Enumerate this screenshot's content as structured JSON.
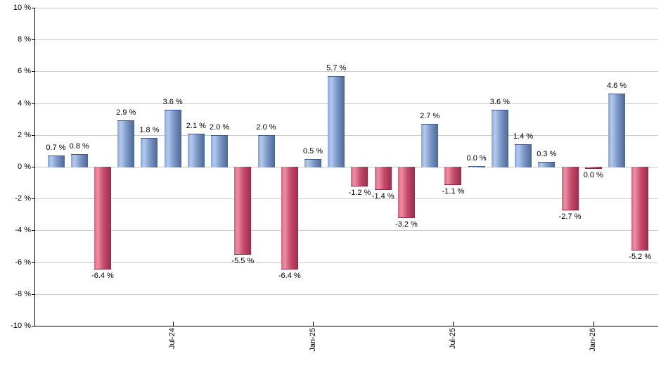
{
  "chart_data": {
    "type": "bar",
    "title": "",
    "xlabel": "",
    "ylabel": "",
    "unit": "%",
    "ylim": [
      -10,
      10
    ],
    "y_tick_step": 2,
    "y_tick_labels": [
      "10 %",
      "8 %",
      "6 %",
      "4 %",
      "2 %",
      "0 %",
      "-2 %",
      "-4 %",
      "-6 %",
      "-8 %",
      "-10 %"
    ],
    "x_tick_labels": [
      {
        "bar_index": 5,
        "label": "Jul-24"
      },
      {
        "bar_index": 11,
        "label": "Jan-25"
      },
      {
        "bar_index": 17,
        "label": "Jul-25"
      },
      {
        "bar_index": 23,
        "label": "Jan-26"
      }
    ],
    "grid": "horizontal",
    "legend": "none",
    "bars": [
      {
        "value": 0.7,
        "label": "0.7 %",
        "color": "blue"
      },
      {
        "value": 0.8,
        "label": "0.8 %",
        "color": "blue"
      },
      {
        "value": -6.4,
        "label": "-6.4 %",
        "color": "red"
      },
      {
        "value": 2.9,
        "label": "2.9 %",
        "color": "blue"
      },
      {
        "value": 1.8,
        "label": "1.8 %",
        "color": "blue"
      },
      {
        "value": 3.6,
        "label": "3.6 %",
        "color": "blue"
      },
      {
        "value": 2.1,
        "label": "2.1 %",
        "color": "blue"
      },
      {
        "value": 2.0,
        "label": "2.0 %",
        "color": "blue"
      },
      {
        "value": -5.5,
        "label": "-5.5 %",
        "color": "red"
      },
      {
        "value": 2.0,
        "label": "2.0 %",
        "color": "blue"
      },
      {
        "value": -6.4,
        "label": "-6.4 %",
        "color": "red"
      },
      {
        "value": 0.5,
        "label": "0.5 %",
        "color": "blue"
      },
      {
        "value": 5.7,
        "label": "5.7 %",
        "color": "blue"
      },
      {
        "value": -1.2,
        "label": "-1.2 %",
        "color": "red"
      },
      {
        "value": -1.4,
        "label": "-1.4 %",
        "color": "red"
      },
      {
        "value": -3.2,
        "label": "-3.2 %",
        "color": "red"
      },
      {
        "value": 2.7,
        "label": "2.7 %",
        "color": "blue"
      },
      {
        "value": -1.1,
        "label": "-1.1 %",
        "color": "red"
      },
      {
        "value": 0.0,
        "label": "0.0 %",
        "color": "blue"
      },
      {
        "value": 3.6,
        "label": "3.6 %",
        "color": "blue"
      },
      {
        "value": 1.4,
        "label": "1.4 %",
        "color": "blue"
      },
      {
        "value": 0.3,
        "label": "0.3 %",
        "color": "blue"
      },
      {
        "value": -2.7,
        "label": "-2.7 %",
        "color": "red"
      },
      {
        "value": 0.0,
        "label": "0.0 %",
        "color": "red"
      },
      {
        "value": 4.6,
        "label": "4.6 %",
        "color": "blue"
      },
      {
        "value": -5.2,
        "label": "-5.2 %",
        "color": "red"
      }
    ],
    "colors": {
      "blue_gradient_stops": [
        "#8aa4d4 0%",
        "#b2caf0 20%",
        "#7c98c6 55%",
        "#4c6796 100%"
      ],
      "red_gradient_stops": [
        "#d86283 0%",
        "#f08ea4 20%",
        "#c44c6c 55%",
        "#9e2b48 100%"
      ],
      "gridline": "#c9c9c9",
      "axis": "#000000",
      "text": "#000000",
      "background": "#ffffff"
    }
  }
}
